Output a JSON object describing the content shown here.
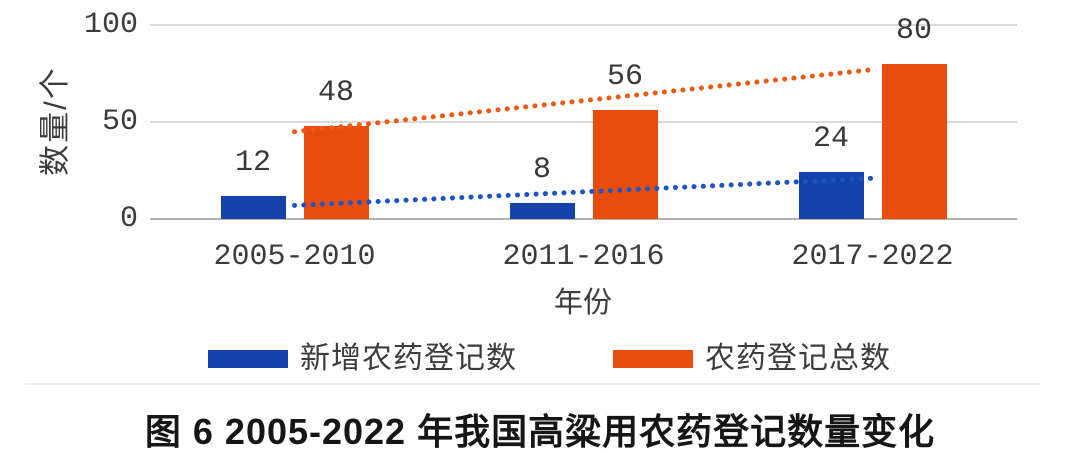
{
  "figure": {
    "caption": "图 6 2005-2022 年我国高粱用农药登记数量变化"
  },
  "chart_data": {
    "type": "bar",
    "title": "",
    "categories": [
      "2005-2010",
      "2011-2016",
      "2017-2022"
    ],
    "series": [
      {
        "name": "新增农药登记数",
        "color": "#1543ab",
        "values": [
          12,
          8,
          24
        ]
      },
      {
        "name": "农药登记总数",
        "color": "#e84d0e",
        "values": [
          48,
          56,
          80
        ]
      }
    ],
    "trendlines": [
      {
        "series": "新增农药登记数",
        "color": "#1d55c4",
        "style": "dotted",
        "start_value": 7,
        "end_value": 21
      },
      {
        "series": "农药登记总数",
        "color": "#ed5a12",
        "style": "dotted",
        "start_value": 45,
        "end_value": 77
      }
    ],
    "xlabel": "年份",
    "ylabel": "数量/个",
    "ylim": [
      0,
      100
    ],
    "yticks": [
      0,
      50,
      100
    ],
    "grid": true,
    "legend_position": "bottom"
  },
  "colors": {
    "gridline": "#dadada",
    "axis_line": "#b3b3b3",
    "text": "#3c3c3c",
    "caption_text": "#161616"
  }
}
